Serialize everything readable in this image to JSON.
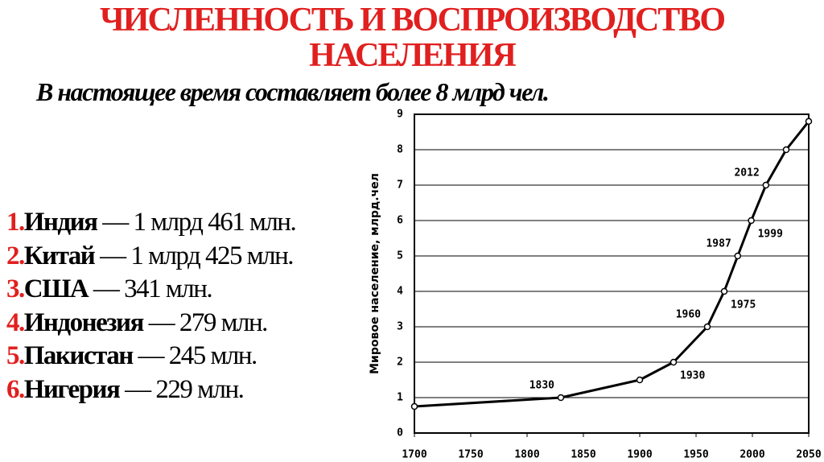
{
  "header": {
    "title_lines": [
      "ЧИСЛЕННОСТЬ И ВОСПРОИЗВОДСТВО",
      "НАСЕЛЕНИЯ"
    ],
    "subtitle": "В настоящее время составляет более 8 млрд чел."
  },
  "list": [
    {
      "num": "1.",
      "country": "Индия",
      "text": "— 1 млрд 461 млн."
    },
    {
      "num": "2.",
      "country": "Китай",
      "text": "— 1 млрд 425 млн."
    },
    {
      "num": "3.",
      "country": "США",
      "text": "— 341 млн."
    },
    {
      "num": "4.",
      "country": "Индонезия",
      "text": "— 279 млн."
    },
    {
      "num": "5.",
      "country": "Пакистан",
      "text": "— 245 млн."
    },
    {
      "num": "6.",
      "country": "Нигерия",
      "text": "— 229 млн."
    }
  ],
  "chart_data": {
    "type": "line",
    "y_label": "Мировое население, млрд.чел",
    "x": [
      1700,
      1830,
      1900,
      1930,
      1960,
      1975,
      1987,
      1999,
      2012,
      2030,
      2050
    ],
    "values": [
      0.75,
      1.0,
      1.5,
      2.0,
      3.0,
      4.0,
      5.0,
      6.0,
      7.0,
      8.0,
      8.8
    ],
    "point_labels": [
      null,
      1830,
      null,
      1930,
      1960,
      1975,
      1987,
      1999,
      2012,
      null,
      null
    ],
    "color": "#000000",
    "xlim": [
      1700,
      2050
    ],
    "xticks": [
      1700,
      1750,
      1800,
      1850,
      1900,
      1950,
      2000,
      2050
    ],
    "ylim": [
      0,
      9
    ],
    "yticks": [
      0,
      1,
      2,
      3,
      4,
      5,
      6,
      7,
      8,
      9
    ],
    "grid": true
  }
}
